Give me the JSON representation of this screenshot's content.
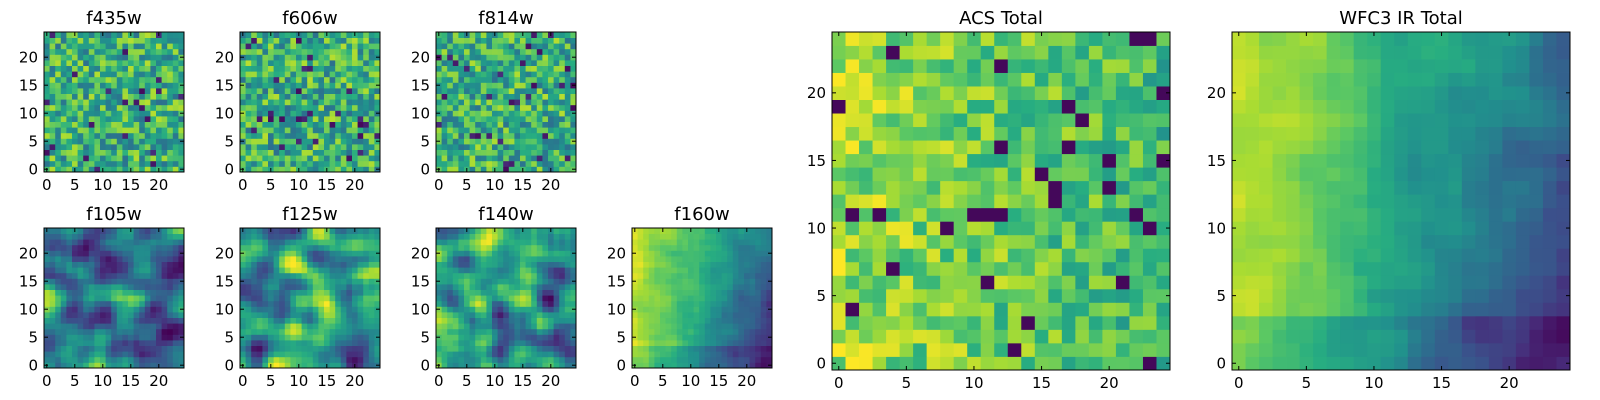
{
  "chart_data": [
    {
      "type": "heatmap",
      "title": "f435w",
      "grid_size": 25,
      "xlim": [
        0,
        24
      ],
      "ylim": [
        0,
        24
      ],
      "xticks": [
        0,
        5,
        10,
        15,
        20
      ],
      "yticks": [
        0,
        5,
        10,
        15,
        20
      ],
      "colormap": "viridis",
      "grid": false,
      "pattern": "uniform-noise"
    },
    {
      "type": "heatmap",
      "title": "f606w",
      "grid_size": 25,
      "xlim": [
        0,
        24
      ],
      "ylim": [
        0,
        24
      ],
      "xticks": [
        0,
        5,
        10,
        15,
        20
      ],
      "yticks": [
        0,
        5,
        10,
        15,
        20
      ],
      "colormap": "viridis",
      "grid": false,
      "pattern": "uniform-noise"
    },
    {
      "type": "heatmap",
      "title": "f814w",
      "grid_size": 25,
      "xlim": [
        0,
        24
      ],
      "ylim": [
        0,
        24
      ],
      "xticks": [
        0,
        5,
        10,
        15,
        20
      ],
      "yticks": [
        0,
        5,
        10,
        15,
        20
      ],
      "colormap": "viridis",
      "grid": false,
      "pattern": "uniform-noise"
    },
    {
      "type": "heatmap",
      "title": "f105w",
      "grid_size": 25,
      "xlim": [
        0,
        24
      ],
      "ylim": [
        0,
        24
      ],
      "xticks": [
        0,
        5,
        10,
        15,
        20
      ],
      "yticks": [
        0,
        5,
        10,
        15,
        20
      ],
      "colormap": "viridis",
      "grid": false,
      "pattern": "smooth-noise-dark-lower-right"
    },
    {
      "type": "heatmap",
      "title": "f125w",
      "grid_size": 25,
      "xlim": [
        0,
        24
      ],
      "ylim": [
        0,
        24
      ],
      "xticks": [
        0,
        5,
        10,
        15,
        20
      ],
      "yticks": [
        0,
        5,
        10,
        15,
        20
      ],
      "colormap": "viridis",
      "grid": false,
      "pattern": "smooth-noise-bright-center"
    },
    {
      "type": "heatmap",
      "title": "f140w",
      "grid_size": 25,
      "xlim": [
        0,
        24
      ],
      "ylim": [
        0,
        24
      ],
      "xticks": [
        0,
        5,
        10,
        15,
        20
      ],
      "yticks": [
        0,
        5,
        10,
        15,
        20
      ],
      "colormap": "viridis",
      "grid": false,
      "pattern": "smooth-noise-bright-left"
    },
    {
      "type": "heatmap",
      "title": "f160w",
      "grid_size": 25,
      "xlim": [
        0,
        24
      ],
      "ylim": [
        0,
        24
      ],
      "xticks": [
        0,
        5,
        10,
        15,
        20
      ],
      "yticks": [
        0,
        5,
        10,
        15,
        20
      ],
      "colormap": "viridis",
      "grid": false,
      "pattern": "gradient-bright-left-dark-lower-right"
    },
    {
      "type": "heatmap",
      "title": "ACS Total",
      "grid_size": 25,
      "xlim": [
        0,
        24
      ],
      "ylim": [
        0,
        24
      ],
      "xticks": [
        0,
        5,
        10,
        15,
        20
      ],
      "yticks": [
        0,
        5,
        10,
        15,
        20
      ],
      "colormap": "viridis",
      "grid": false,
      "pattern": "noise-bright-left"
    },
    {
      "type": "heatmap",
      "title": "WFC3 IR Total",
      "grid_size": 25,
      "xlim": [
        0,
        24
      ],
      "ylim": [
        0,
        24
      ],
      "xticks": [
        0,
        5,
        10,
        15,
        20
      ],
      "yticks": [
        0,
        5,
        10,
        15,
        20
      ],
      "colormap": "viridis",
      "grid": false,
      "pattern": "gradient-bright-left-dark-lower-right"
    }
  ]
}
